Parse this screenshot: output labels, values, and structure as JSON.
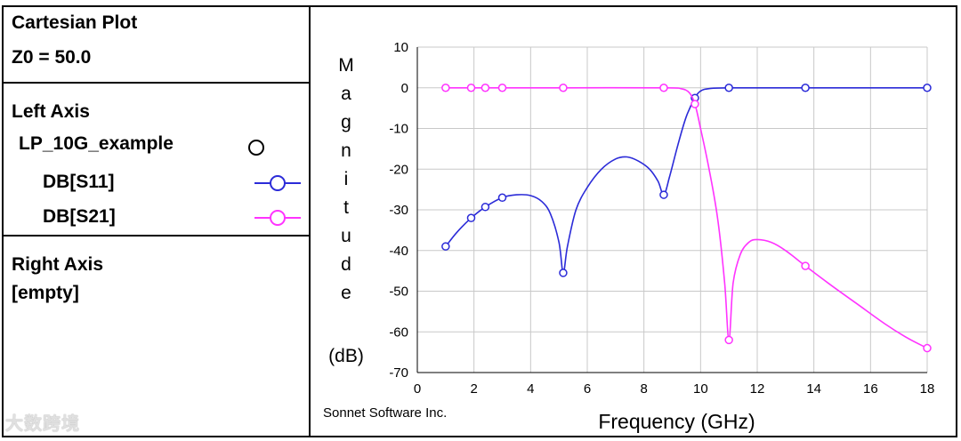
{
  "panel": {
    "title": "Cartesian Plot",
    "z0": "Z0 = 50.0",
    "left_axis_label": "Left Axis",
    "project_name": "LP_10G_example",
    "right_axis_label": "Right Axis",
    "right_axis_value": "[empty]"
  },
  "plot": {
    "footer": "Sonnet Software Inc."
  },
  "watermark": "大数跨境",
  "colors": {
    "s11": "#2b2bd8",
    "s21": "#ff33ff",
    "grid": "#c8c8c8"
  },
  "chart_data": {
    "type": "line",
    "xlabel": "Frequency (GHz)",
    "ylabel_letters": [
      "M",
      "a",
      "g",
      "n",
      "i",
      "t",
      "u",
      "d",
      "e"
    ],
    "ylabel_unit": "(dB)",
    "xlim": [
      0,
      18
    ],
    "ylim": [
      -70,
      10
    ],
    "x_ticks": [
      0,
      2,
      4,
      6,
      8,
      10,
      12,
      14,
      16,
      18
    ],
    "y_ticks": [
      10,
      0,
      -10,
      -20,
      -30,
      -40,
      -50,
      -60,
      -70
    ],
    "grid": true,
    "series": [
      {
        "name": "DB[S11]",
        "color": "#2b2bd8",
        "points": [
          [
            1.0,
            -39
          ],
          [
            1.4,
            -35.5
          ],
          [
            1.9,
            -32
          ],
          [
            2.4,
            -29.3
          ],
          [
            3.0,
            -27
          ],
          [
            3.5,
            -26.3
          ],
          [
            4.0,
            -26.5
          ],
          [
            4.4,
            -28
          ],
          [
            4.7,
            -31
          ],
          [
            5.0,
            -38
          ],
          [
            5.15,
            -45.5
          ],
          [
            5.3,
            -39
          ],
          [
            5.6,
            -30
          ],
          [
            6.0,
            -24.5
          ],
          [
            6.5,
            -20
          ],
          [
            7.0,
            -17.5
          ],
          [
            7.4,
            -17
          ],
          [
            7.8,
            -18
          ],
          [
            8.2,
            -20
          ],
          [
            8.5,
            -23
          ],
          [
            8.7,
            -26.3
          ],
          [
            8.9,
            -22
          ],
          [
            9.2,
            -14
          ],
          [
            9.5,
            -7
          ],
          [
            9.8,
            -2.5
          ],
          [
            10.0,
            -0.8
          ],
          [
            10.3,
            -0.2
          ],
          [
            11.0,
            0
          ],
          [
            13.7,
            0
          ],
          [
            18.0,
            0
          ]
        ],
        "markers": [
          [
            1.0,
            -39
          ],
          [
            1.9,
            -32
          ],
          [
            2.4,
            -29.3
          ],
          [
            3.0,
            -27
          ],
          [
            5.15,
            -45.5
          ],
          [
            8.7,
            -26.3
          ],
          [
            9.8,
            -2.5
          ],
          [
            11.0,
            0
          ],
          [
            13.7,
            0
          ],
          [
            18.0,
            0
          ]
        ]
      },
      {
        "name": "DB[S21]",
        "color": "#ff33ff",
        "points": [
          [
            1.0,
            0
          ],
          [
            1.9,
            0
          ],
          [
            2.4,
            0
          ],
          [
            3.0,
            0
          ],
          [
            5.15,
            0
          ],
          [
            8.7,
            0
          ],
          [
            9.3,
            -0.2
          ],
          [
            9.6,
            -1.2
          ],
          [
            9.8,
            -4
          ],
          [
            10.0,
            -10
          ],
          [
            10.3,
            -20
          ],
          [
            10.6,
            -32
          ],
          [
            10.85,
            -48
          ],
          [
            11.0,
            -62
          ],
          [
            11.15,
            -48
          ],
          [
            11.4,
            -41
          ],
          [
            11.7,
            -38
          ],
          [
            12.0,
            -37.3
          ],
          [
            12.5,
            -38
          ],
          [
            13.0,
            -40
          ],
          [
            13.7,
            -43.8
          ],
          [
            14.5,
            -48
          ],
          [
            15.5,
            -53
          ],
          [
            16.5,
            -58
          ],
          [
            17.3,
            -61.5
          ],
          [
            18.0,
            -64
          ]
        ],
        "markers": [
          [
            1.0,
            0
          ],
          [
            1.9,
            0
          ],
          [
            2.4,
            0
          ],
          [
            3.0,
            0
          ],
          [
            5.15,
            0
          ],
          [
            8.7,
            0
          ],
          [
            9.8,
            -4
          ],
          [
            11.0,
            -62
          ],
          [
            13.7,
            -43.8
          ],
          [
            18.0,
            -64
          ]
        ]
      }
    ]
  }
}
